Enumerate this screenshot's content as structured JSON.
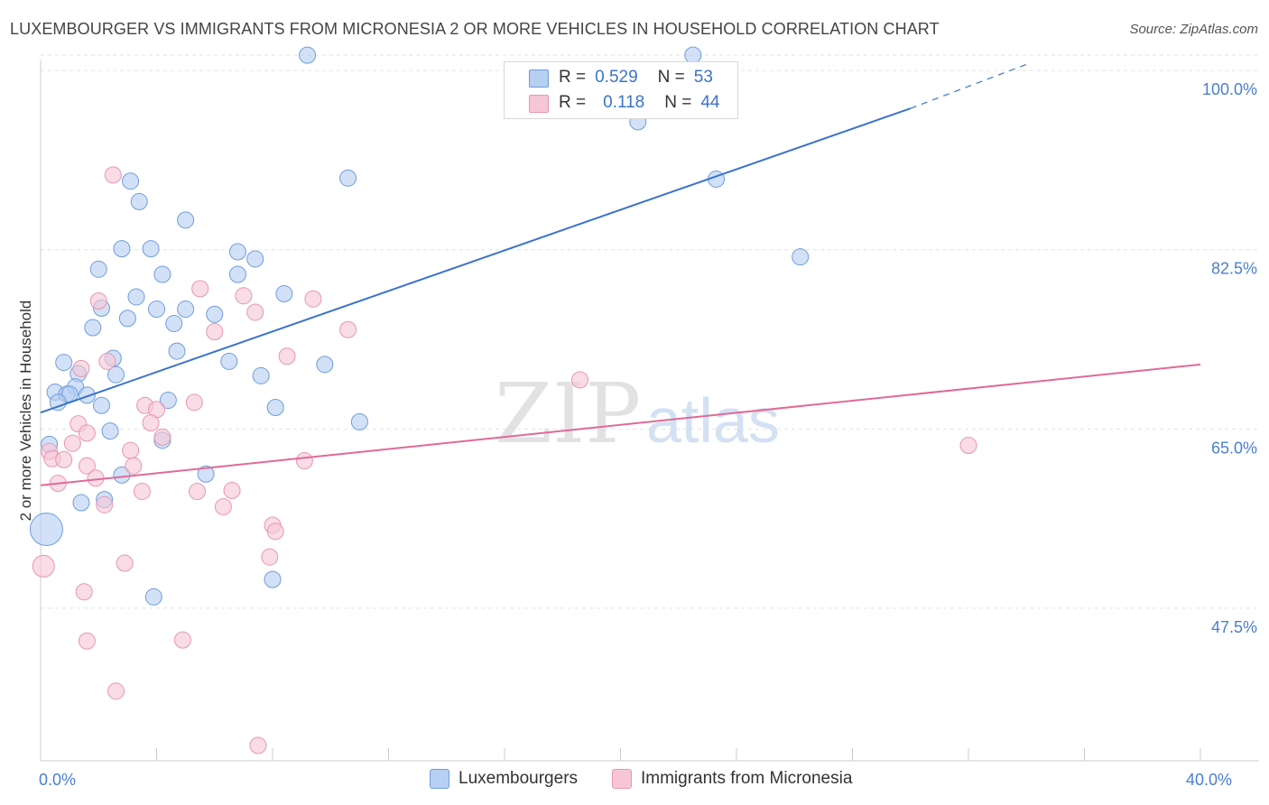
{
  "title": "LUXEMBOURGER VS IMMIGRANTS FROM MICRONESIA 2 OR MORE VEHICLES IN HOUSEHOLD CORRELATION CHART",
  "source": "Source: ZipAtlas.com",
  "watermark": {
    "zip": "ZIP",
    "atlas": "atlas"
  },
  "legend_top": {
    "rows": [
      {
        "r_label": "R =",
        "r_value": "0.529",
        "n_label": "N =",
        "n_value": "53"
      },
      {
        "r_label": "R =",
        "r_value": "0.118",
        "n_label": "N =",
        "n_value": "44"
      }
    ]
  },
  "legend_bottom": {
    "items": [
      {
        "label": "Luxembourgers"
      },
      {
        "label": "Immigrants from Micronesia"
      }
    ]
  },
  "colors": {
    "blue_fill": "#b7cff2",
    "blue_stroke": "#6f9ddc",
    "blue_line": "#3a74c9",
    "pink_fill": "#f6c6d6",
    "pink_stroke": "#e896b2",
    "pink_line": "#e06a97",
    "grid": "#e3e3e3",
    "axis": "#cccccc",
    "tick_text": "#4a7fd0"
  },
  "chart_data": {
    "type": "scatter",
    "title": "LUXEMBOURGER VS IMMIGRANTS FROM MICRONESIA 2 OR MORE VEHICLES IN HOUSEHOLD CORRELATION CHART",
    "xlabel": "",
    "ylabel": "2 or more Vehicles in Household",
    "xlim": [
      0,
      40
    ],
    "ylim": [
      32.6,
      101.6
    ],
    "x_tick_labels": [
      {
        "value": 0,
        "label": "0.0%"
      },
      {
        "value": 40,
        "label": "40.0%"
      }
    ],
    "x_minor_ticks": [
      4,
      8,
      12,
      16,
      20,
      24,
      28,
      32,
      36,
      40
    ],
    "y_ticks": [
      {
        "value": 100,
        "label": "100.0%"
      },
      {
        "value": 82.5,
        "label": "82.5%"
      },
      {
        "value": 65,
        "label": "65.0%"
      },
      {
        "value": 47.5,
        "label": "47.5%"
      }
    ],
    "series": [
      {
        "name": "Luxembourgers",
        "r": 0.529,
        "n": 53,
        "trend": {
          "x0": 0,
          "y0": 66.6,
          "x1": 30,
          "y1": 96.3,
          "dash_to_x": 34,
          "dash_to_y": 100.6
        },
        "points": [
          [
            9.2,
            101.5
          ],
          [
            22.5,
            101.5
          ],
          [
            20.6,
            95.0
          ],
          [
            3.1,
            89.2
          ],
          [
            10.6,
            89.5
          ],
          [
            23.3,
            89.4
          ],
          [
            3.4,
            87.2
          ],
          [
            5.0,
            85.4
          ],
          [
            2.8,
            82.6
          ],
          [
            3.8,
            82.6
          ],
          [
            6.8,
            82.3
          ],
          [
            7.4,
            81.6
          ],
          [
            26.2,
            81.8
          ],
          [
            2.0,
            80.6
          ],
          [
            4.2,
            80.1
          ],
          [
            6.8,
            80.1
          ],
          [
            3.3,
            77.9
          ],
          [
            2.1,
            76.8
          ],
          [
            4.0,
            76.7
          ],
          [
            5.0,
            76.7
          ],
          [
            3.0,
            75.8
          ],
          [
            1.8,
            74.9
          ],
          [
            4.6,
            75.3
          ],
          [
            6.0,
            76.2
          ],
          [
            4.7,
            72.6
          ],
          [
            8.4,
            78.2
          ],
          [
            2.5,
            71.9
          ],
          [
            6.5,
            71.6
          ],
          [
            0.8,
            71.5
          ],
          [
            9.8,
            71.3
          ],
          [
            2.6,
            70.3
          ],
          [
            1.3,
            70.4
          ],
          [
            7.6,
            70.2
          ],
          [
            1.2,
            69.1
          ],
          [
            0.5,
            68.6
          ],
          [
            0.9,
            68.4
          ],
          [
            1.0,
            68.4
          ],
          [
            1.6,
            68.3
          ],
          [
            0.6,
            67.6
          ],
          [
            2.1,
            67.3
          ],
          [
            4.4,
            67.8
          ],
          [
            8.1,
            67.1
          ],
          [
            11.0,
            65.7
          ],
          [
            2.4,
            64.8
          ],
          [
            4.2,
            63.9
          ],
          [
            0.3,
            63.5
          ],
          [
            5.7,
            60.6
          ],
          [
            2.2,
            58.1
          ],
          [
            1.4,
            57.8
          ],
          [
            0.2,
            55.2
          ],
          [
            8.0,
            50.3
          ],
          [
            3.9,
            48.6
          ],
          [
            2.8,
            60.5
          ]
        ]
      },
      {
        "name": "Immigrants from Micronesia",
        "r": 0.118,
        "n": 44,
        "trend": {
          "x0": 0,
          "y0": 59.5,
          "x1": 40,
          "y1": 71.3
        },
        "points": [
          [
            2.5,
            89.8
          ],
          [
            5.5,
            78.7
          ],
          [
            2.0,
            77.5
          ],
          [
            9.4,
            77.7
          ],
          [
            7.0,
            78.0
          ],
          [
            7.4,
            76.4
          ],
          [
            6.0,
            74.5
          ],
          [
            10.6,
            74.7
          ],
          [
            8.5,
            72.1
          ],
          [
            2.3,
            71.6
          ],
          [
            1.4,
            70.9
          ],
          [
            18.6,
            69.8
          ],
          [
            5.3,
            67.6
          ],
          [
            3.6,
            67.3
          ],
          [
            4.0,
            66.9
          ],
          [
            3.8,
            65.6
          ],
          [
            1.3,
            65.5
          ],
          [
            1.6,
            64.6
          ],
          [
            4.2,
            64.2
          ],
          [
            1.1,
            63.6
          ],
          [
            3.1,
            62.9
          ],
          [
            0.3,
            62.8
          ],
          [
            0.4,
            62.1
          ],
          [
            0.8,
            62.0
          ],
          [
            9.1,
            61.9
          ],
          [
            1.6,
            61.4
          ],
          [
            3.2,
            61.4
          ],
          [
            1.9,
            60.2
          ],
          [
            0.6,
            59.7
          ],
          [
            3.5,
            58.9
          ],
          [
            5.4,
            58.9
          ],
          [
            6.6,
            59.0
          ],
          [
            6.3,
            57.4
          ],
          [
            2.2,
            57.6
          ],
          [
            8.0,
            55.6
          ],
          [
            8.1,
            55.0
          ],
          [
            7.9,
            52.5
          ],
          [
            2.9,
            51.9
          ],
          [
            0.1,
            51.6
          ],
          [
            1.5,
            49.1
          ],
          [
            32.0,
            63.4
          ],
          [
            1.6,
            44.3
          ],
          [
            4.9,
            44.4
          ],
          [
            2.6,
            39.4
          ]
        ],
        "extra_points": [
          [
            7.5,
            34.1
          ]
        ]
      }
    ]
  }
}
